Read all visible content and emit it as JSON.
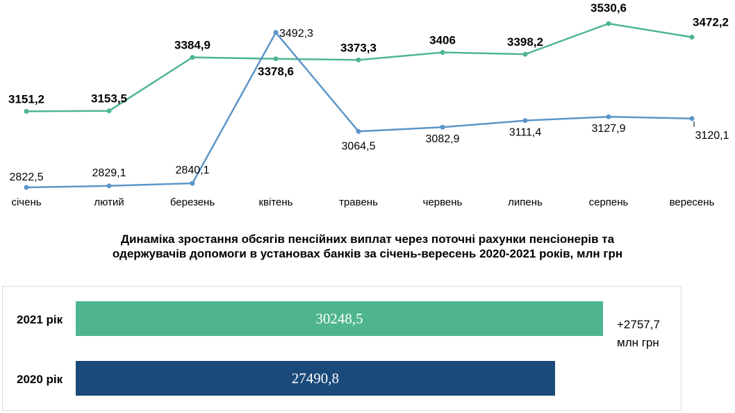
{
  "chart_data": [
    {
      "type": "line",
      "categories": [
        "січень",
        "лютий",
        "березень",
        "квітень",
        "травень",
        "червень",
        "липень",
        "серпень",
        "вересень"
      ],
      "series": [
        {
          "key": "y2021",
          "color": "#4fb58f",
          "values": [
            3151.2,
            3153.5,
            3384.9,
            3378.6,
            3373.3,
            3406,
            3398.2,
            3530.6,
            3472.2
          ],
          "labels": [
            "3151,2",
            "3153,5",
            "3384,9",
            "3378,6",
            "3373,3",
            "3406",
            "3398,2",
            "3530,6",
            "3472,2"
          ]
        },
        {
          "key": "y2020",
          "color": "#5b95c8",
          "values": [
            2822.5,
            2829.1,
            2840.1,
            3492.3,
            3064.5,
            3082.9,
            3111.4,
            3127.9,
            3120.1
          ],
          "labels": [
            "2822,5",
            "2829,1",
            "2840,1",
            "3492,3",
            "3064,5",
            "3082,9",
            "3111,4",
            "3127,9",
            "3120,1"
          ]
        }
      ],
      "grid": false
    },
    {
      "type": "bar",
      "orientation": "horizontal",
      "title": "Динаміка зростання обсягів пенсійних виплат через поточні рахунки пенсіонерів та одержувачів допомоги в установах банків за січень-вересень 2020-2021 років, млн грн",
      "title_line1": "Динаміка зростання обсягів пенсійних виплат через поточні рахунки пенсіонерів та",
      "title_line2": "одержувачів допомоги в установах банків за січень-вересень 2020-2021 років, млн грн",
      "categories": [
        "2021 рік",
        "2020 рік"
      ],
      "values": [
        30248.5,
        27490.8
      ],
      "value_labels": [
        "30248,5",
        "27490,8"
      ],
      "colors": [
        "#4fb58f",
        "#1a4a7a"
      ],
      "annotation_line1": "+2757,7",
      "annotation_line2": "млн грн"
    }
  ]
}
